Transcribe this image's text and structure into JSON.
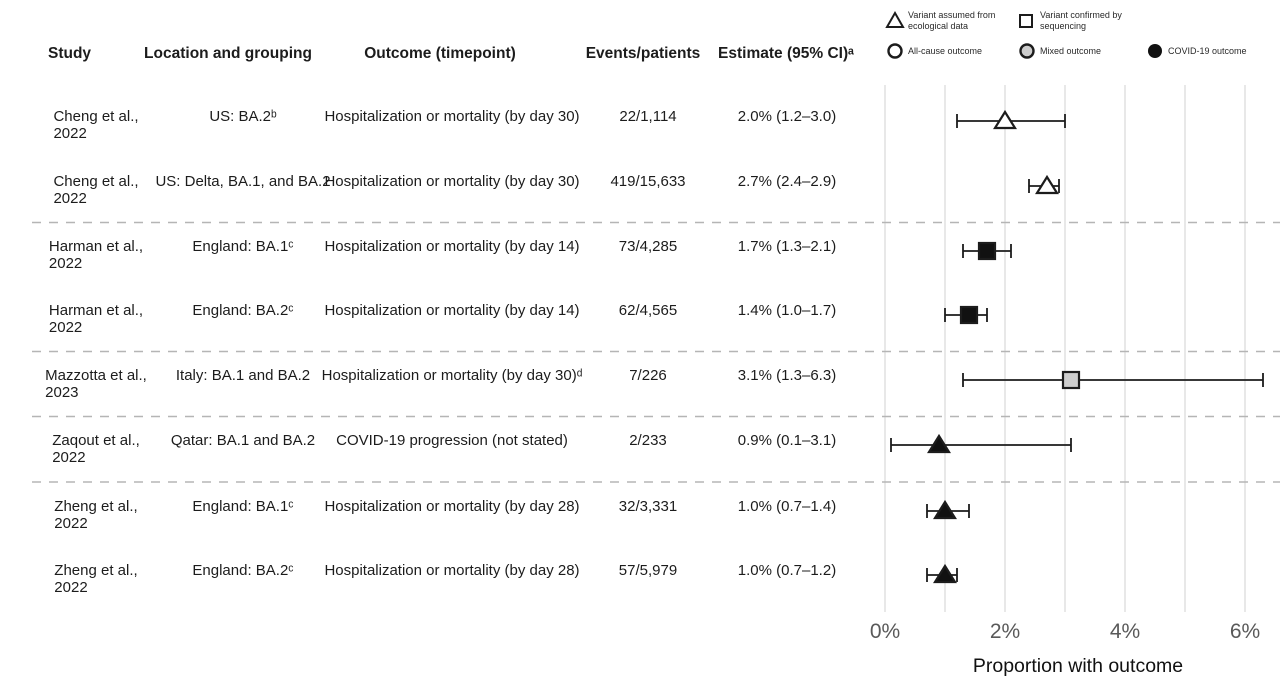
{
  "chart_data": {
    "type": "forest",
    "xlabel": "Proportion with outcome",
    "xlim": [
      0,
      6.6
    ],
    "x_ticks": [
      {
        "value": 0,
        "label": "0%"
      },
      {
        "value": 2,
        "label": "2%"
      },
      {
        "value": 4,
        "label": "4%"
      },
      {
        "value": 6,
        "label": "6%"
      }
    ],
    "x_gridline_values": [
      0,
      1,
      2,
      3,
      4,
      5,
      6
    ],
    "columns": {
      "study": "Study",
      "location": "Location and grouping",
      "outcome": "Outcome (timepoint)",
      "events": "Events/patients",
      "estimate": "Estimate (95% CI)ᵃ"
    },
    "legend": {
      "variant_assumed_line1": "Variant assumed from",
      "variant_assumed_line2": "ecological data",
      "variant_confirmed_line1": "Variant confirmed by",
      "variant_confirmed_line2": "sequencing",
      "all_cause": "All-cause outcome",
      "mixed": "Mixed outcome",
      "covid": "COVID-19 outcome"
    },
    "rows": [
      {
        "study": "Cheng et al.,",
        "year": "2022",
        "location": "US: BA.2ᵇ",
        "outcome": "Hospitalization or mortality (by day 30)",
        "events": "22/1,114",
        "estimate_label": "2.0% (1.2–3.0)",
        "estimate": 2.0,
        "ci_low": 1.2,
        "ci_high": 3.0,
        "marker": "triangle",
        "fill": "white"
      },
      {
        "study": "Cheng et al.,",
        "year": "2022",
        "location": "US: Delta, BA.1, and BA.2",
        "outcome": "Hospitalization or mortality (by day 30)",
        "events": "419/15,633",
        "estimate_label": "2.7% (2.4–2.9)",
        "estimate": 2.7,
        "ci_low": 2.4,
        "ci_high": 2.9,
        "marker": "triangle",
        "fill": "white"
      },
      {
        "study": "Harman et al.,",
        "year": "2022",
        "location": "England: BA.1ᶜ",
        "outcome": "Hospitalization or mortality (by day 14)",
        "events": "73/4,285",
        "estimate_label": "1.7% (1.3–2.1)",
        "estimate": 1.7,
        "ci_low": 1.3,
        "ci_high": 2.1,
        "marker": "square",
        "fill": "black"
      },
      {
        "study": "Harman et al.,",
        "year": "2022",
        "location": "England: BA.2ᶜ",
        "outcome": "Hospitalization or mortality (by day 14)",
        "events": "62/4,565",
        "estimate_label": "1.4% (1.0–1.7)",
        "estimate": 1.4,
        "ci_low": 1.0,
        "ci_high": 1.7,
        "marker": "square",
        "fill": "black"
      },
      {
        "study": "Mazzotta et al.,",
        "year": "2023",
        "location": "Italy: BA.1 and BA.2",
        "outcome": "Hospitalization or mortality (by day 30)ᵈ",
        "events": "7/226",
        "estimate_label": "3.1% (1.3–6.3)",
        "estimate": 3.1,
        "ci_low": 1.3,
        "ci_high": 6.3,
        "marker": "square",
        "fill": "gray"
      },
      {
        "study": "Zaqout et al.,",
        "year": "2022",
        "location": "Qatar: BA.1 and BA.2",
        "outcome": "COVID-19 progression (not stated)",
        "events": "2/233",
        "estimate_label": "0.9% (0.1–3.1)",
        "estimate": 0.9,
        "ci_low": 0.1,
        "ci_high": 3.1,
        "marker": "triangle",
        "fill": "black"
      },
      {
        "study": "Zheng et al.,",
        "year": "2022",
        "location": "England: BA.1ᶜ",
        "outcome": "Hospitalization or mortality (by day 28)",
        "events": "32/3,331",
        "estimate_label": "1.0% (0.7–1.4)",
        "estimate": 1.0,
        "ci_low": 0.7,
        "ci_high": 1.4,
        "marker": "triangle",
        "fill": "black"
      },
      {
        "study": "Zheng et al.,",
        "year": "2022",
        "location": "England: BA.2ᶜ",
        "outcome": "Hospitalization or mortality (by day 28)",
        "events": "57/5,979",
        "estimate_label": "1.0% (0.7–1.2)",
        "estimate": 1.0,
        "ci_low": 0.7,
        "ci_high": 1.2,
        "marker": "triangle",
        "fill": "black"
      }
    ],
    "separators_after_row": [
      1,
      3,
      4,
      5
    ],
    "colors": {
      "marker_stroke": "#1c1c1c",
      "marker_black": "#111111",
      "marker_gray": "#cdcdcd",
      "marker_white": "#ffffff",
      "gridline": "#dcdcdc",
      "separator": "#b5b5b5",
      "tick_label": "#595959",
      "axis_label": "#111111"
    }
  }
}
